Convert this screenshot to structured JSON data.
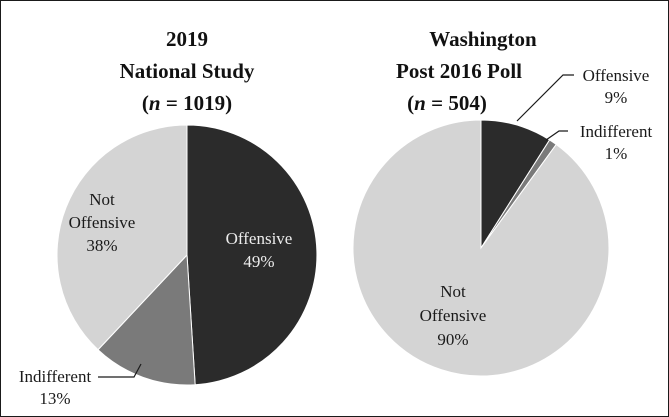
{
  "chart_data": [
    {
      "type": "pie",
      "title_lines": [
        "2019",
        "National Study"
      ],
      "sample": {
        "prefix": "(",
        "n": "n",
        "rest": " = 1019)"
      },
      "slices": [
        {
          "label": "Offensive",
          "pct_label": "49%",
          "value": 49,
          "color": "#2b2b2b"
        },
        {
          "label": "Indifferent",
          "pct_label": "13%",
          "value": 13,
          "color": "#7a7a7a"
        },
        {
          "label_lines": [
            "Not",
            "Offensive"
          ],
          "pct_label": "38%",
          "value": 38,
          "color": "#d4d4d4"
        }
      ]
    },
    {
      "type": "pie",
      "title_lines": [
        "Washington",
        "Post 2016 Poll"
      ],
      "sample": {
        "prefix": "(",
        "n": "n",
        "rest": " = 504)"
      },
      "slices": [
        {
          "label": "Offensive",
          "pct_label": "9%",
          "value": 9,
          "color": "#2b2b2b"
        },
        {
          "label": "Indifferent",
          "pct_label": "1%",
          "value": 1,
          "color": "#7a7a7a"
        },
        {
          "label_lines": [
            "Not",
            "Offensive"
          ],
          "pct_label": "90%",
          "value": 90,
          "color": "#d4d4d4"
        }
      ]
    }
  ]
}
